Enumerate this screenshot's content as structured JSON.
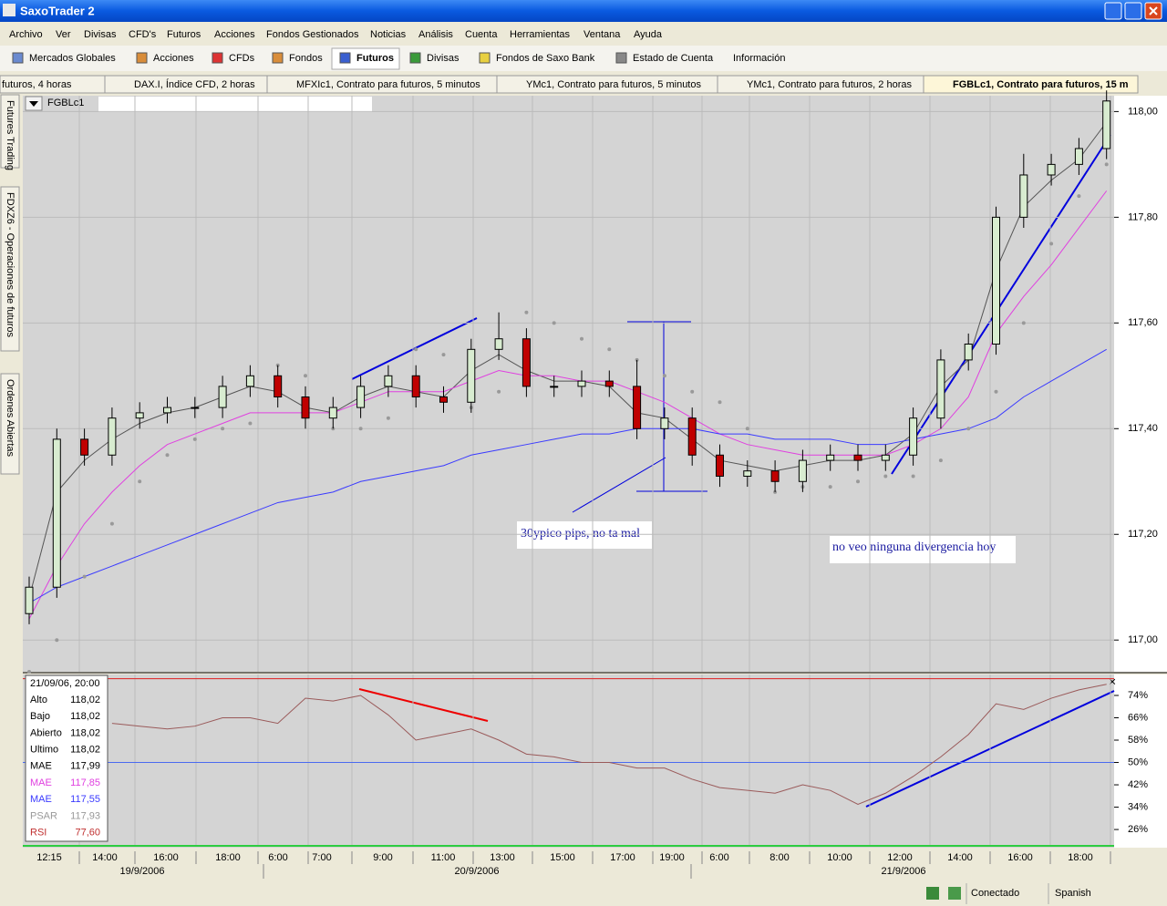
{
  "window_title": "SaxoTrader 2",
  "menu": [
    "Archivo",
    "Ver",
    "Divisas",
    "CFD's",
    "Futuros",
    "Acciones",
    "Fondos Gestionados",
    "Noticias",
    "Análisis",
    "Cuenta",
    "Herramientas",
    "Ventana",
    "Ayuda"
  ],
  "toolbar": [
    "Mercados Globales",
    "Acciones",
    "CFDs",
    "Fondos",
    "Futuros",
    "Divisas",
    "Fondos de Saxo Bank",
    "Estado de Cuenta",
    "Información"
  ],
  "chart_tabs": [
    "futuros, 4 horas",
    "DAX.I, Índice CFD, 2 horas",
    "MFXIc1, Contrato para futuros, 5 minutos",
    "YMc1, Contrato para futuros, 5 minutos",
    "YMc1, Contrato para futuros, 2 horas",
    "FGBLc1, Contrato para futuros, 15 m"
  ],
  "side_tabs": [
    "Futures Trading",
    "FDXZ6 - Operaciones de futuros",
    "Ordenes Abiertas"
  ],
  "symbol": "FGBLc1",
  "info_box": {
    "title": "21/09/06, 20:00",
    "rows": [
      [
        "Alto",
        "118,02"
      ],
      [
        "Bajo",
        "118,02"
      ],
      [
        "Abierto",
        "118,02"
      ],
      [
        "Ultimo",
        "118,02"
      ],
      [
        "MAE",
        "117,99"
      ],
      [
        "MAE",
        "117,85"
      ],
      [
        "MAE",
        "117,55"
      ],
      [
        "PSAR",
        "117,93"
      ],
      [
        "RSI",
        "77,60"
      ]
    ]
  },
  "status": [
    "Conectado",
    "Spanish"
  ],
  "chart_data": {
    "type": "candlestick",
    "open": [
      117.05,
      117.1,
      117.38,
      117.35,
      117.42,
      117.43,
      117.44,
      117.44,
      117.48,
      117.5,
      117.46,
      117.42,
      117.44,
      117.48,
      117.5,
      117.46,
      117.45,
      117.55,
      117.57,
      117.48,
      117.48,
      117.49,
      117.48,
      117.4,
      117.42,
      117.35,
      117.31,
      117.32,
      117.3,
      117.34,
      117.35,
      117.34,
      117.35,
      117.42,
      117.53,
      117.56,
      117.8,
      117.88,
      117.9,
      117.93
    ],
    "high": [
      117.12,
      117.4,
      117.4,
      117.44,
      117.45,
      117.46,
      117.46,
      117.5,
      117.52,
      117.52,
      117.48,
      117.46,
      117.5,
      117.52,
      117.52,
      117.48,
      117.57,
      117.62,
      117.59,
      117.5,
      117.51,
      117.51,
      117.53,
      117.44,
      117.44,
      117.37,
      117.34,
      117.34,
      117.36,
      117.37,
      117.37,
      117.37,
      117.44,
      117.55,
      117.58,
      117.82,
      117.92,
      117.92,
      117.95,
      118.04
    ],
    "low": [
      117.03,
      117.08,
      117.33,
      117.33,
      117.4,
      117.41,
      117.42,
      117.42,
      117.46,
      117.44,
      117.4,
      117.4,
      117.42,
      117.46,
      117.44,
      117.43,
      117.43,
      117.53,
      117.46,
      117.46,
      117.46,
      117.46,
      117.38,
      117.38,
      117.33,
      117.29,
      117.29,
      117.28,
      117.28,
      117.32,
      117.32,
      117.32,
      117.33,
      117.4,
      117.51,
      117.54,
      117.78,
      117.86,
      117.88,
      117.91
    ],
    "close": [
      117.1,
      117.38,
      117.35,
      117.42,
      117.43,
      117.44,
      117.44,
      117.48,
      117.5,
      117.46,
      117.42,
      117.44,
      117.48,
      117.5,
      117.46,
      117.45,
      117.55,
      117.57,
      117.48,
      117.48,
      117.49,
      117.48,
      117.4,
      117.42,
      117.35,
      117.31,
      117.32,
      117.3,
      117.34,
      117.35,
      117.34,
      117.35,
      117.42,
      117.53,
      117.56,
      117.8,
      117.88,
      117.9,
      117.93,
      118.02
    ],
    "up_color": "#d8ecd0",
    "down_color": "#c00000",
    "series": [
      {
        "name": "MAE",
        "color": "#555555",
        "values": [
          117.08,
          117.28,
          117.34,
          117.38,
          117.41,
          117.43,
          117.44,
          117.46,
          117.48,
          117.47,
          117.44,
          117.43,
          117.46,
          117.48,
          117.47,
          117.46,
          117.51,
          117.54,
          117.51,
          117.49,
          117.49,
          117.48,
          117.43,
          117.42,
          117.38,
          117.34,
          117.33,
          117.32,
          117.33,
          117.34,
          117.34,
          117.35,
          117.39,
          117.48,
          117.53,
          117.7,
          117.82,
          117.87,
          117.91,
          117.98
        ]
      },
      {
        "name": "MAE",
        "color": "#e040e0",
        "values": [
          117.04,
          117.14,
          117.22,
          117.28,
          117.33,
          117.37,
          117.39,
          117.41,
          117.43,
          117.43,
          117.43,
          117.43,
          117.45,
          117.47,
          117.47,
          117.47,
          117.49,
          117.51,
          117.5,
          117.5,
          117.49,
          117.49,
          117.47,
          117.45,
          117.42,
          117.39,
          117.37,
          117.36,
          117.35,
          117.35,
          117.35,
          117.35,
          117.37,
          117.4,
          117.46,
          117.58,
          117.65,
          117.71,
          117.78,
          117.85
        ]
      },
      {
        "name": "MAE",
        "color": "#3a3aff",
        "values": [
          117.07,
          117.1,
          117.12,
          117.14,
          117.16,
          117.18,
          117.2,
          117.22,
          117.24,
          117.26,
          117.27,
          117.28,
          117.3,
          117.31,
          117.32,
          117.33,
          117.35,
          117.36,
          117.37,
          117.38,
          117.39,
          117.39,
          117.4,
          117.4,
          117.4,
          117.39,
          117.39,
          117.38,
          117.38,
          117.38,
          117.37,
          117.37,
          117.38,
          117.39,
          117.4,
          117.42,
          117.46,
          117.49,
          117.52,
          117.55
        ]
      },
      {
        "name": "PSAR",
        "color": "#999999",
        "values": [
          116.94,
          117.0,
          117.12,
          117.22,
          117.3,
          117.35,
          117.38,
          117.4,
          117.41,
          117.52,
          117.5,
          117.4,
          117.4,
          117.42,
          117.55,
          117.54,
          117.44,
          117.47,
          117.62,
          117.6,
          117.57,
          117.55,
          117.53,
          117.5,
          117.47,
          117.45,
          117.4,
          117.28,
          117.29,
          117.29,
          117.3,
          117.31,
          117.31,
          117.34,
          117.4,
          117.47,
          117.6,
          117.75,
          117.84,
          117.9
        ]
      }
    ],
    "ylim": [
      116.94,
      118.03
    ],
    "yticks": [
      {
        "value": 117,
        "label": "117,00"
      },
      {
        "value": 117.2,
        "label": "117,20"
      },
      {
        "value": 117.4,
        "label": "117,40"
      },
      {
        "value": 117.6,
        "label": "117,60"
      },
      {
        "value": 117.8,
        "label": "117,80"
      },
      {
        "value": 118,
        "label": "118,00"
      }
    ],
    "grid": true,
    "rsi": {
      "name": "RSI",
      "color": "#9a5a5a",
      "values": [
        null,
        null,
        null,
        64,
        63,
        62,
        63,
        66,
        66,
        64,
        73,
        72,
        74,
        67,
        58,
        60,
        62,
        58,
        53,
        52,
        50,
        50,
        48,
        48,
        44,
        41,
        40,
        39,
        42,
        40,
        35,
        39,
        45,
        52,
        60,
        71,
        69,
        73,
        76,
        78
      ],
      "ylim": [
        19.5,
        81.5
      ],
      "levels": [
        80,
        50
      ],
      "yticks": [
        {
          "value": 26,
          "label": "26%"
        },
        {
          "value": 34,
          "label": "34%"
        },
        {
          "value": 42,
          "label": "42%"
        },
        {
          "value": 50,
          "label": "50%"
        },
        {
          "value": 58,
          "label": "58%"
        },
        {
          "value": 66,
          "label": "66%"
        },
        {
          "value": 74,
          "label": "74%"
        }
      ]
    },
    "time_labels": [
      "12:15",
      "14:00",
      "16:00",
      "18:00",
      "6:00",
      "7:00",
      "9:00",
      "11:00",
      "13:00",
      "15:00",
      "17:00",
      "19:00",
      "6:00",
      "8:00",
      "10:00",
      "12:00",
      "14:00",
      "16:00",
      "18:00"
    ],
    "date_labels": [
      "19/9/2006",
      "20/9/2006",
      "21/9/2006"
    ],
    "annotations": [
      "30ypico pips, no ta mal",
      "no veo ninguna divergencia hoy"
    ]
  }
}
